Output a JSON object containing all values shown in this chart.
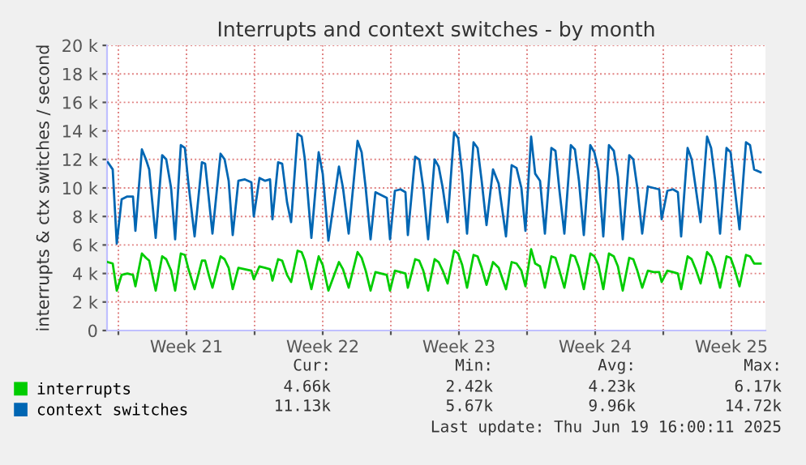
{
  "chart_data": {
    "type": "line",
    "title": "Interrupts and context switches - by month",
    "ylabel": "interrupts & ctx switches / second",
    "x": [
      "2025-05-16T11:00",
      "2025-05-16T17:00",
      "2025-05-16T22:00",
      "2025-05-17T04:00",
      "2025-05-17T11:00",
      "2025-05-17T18:00",
      "2025-05-17T21:00",
      "2025-05-18T05:00",
      "2025-05-18T10:00",
      "2025-05-18T14:00",
      "2025-05-18T22:00",
      "2025-05-19T06:00",
      "2025-05-19T11:00",
      "2025-05-19T17:00",
      "2025-05-19T22:00",
      "2025-05-20T05:00",
      "2025-05-20T10:00",
      "2025-05-20T14:00",
      "2025-05-20T22:00",
      "2025-05-21T07:00",
      "2025-05-21T11:00",
      "2025-05-21T16:00",
      "2025-05-21T20:00",
      "2025-05-22T06:00",
      "2025-05-22T11:00",
      "2025-05-22T16:00",
      "2025-05-22T21:00",
      "2025-05-23T04:00",
      "2025-05-23T12:00",
      "2025-05-23T20:00",
      "2025-05-23T23:00",
      "2025-05-24T06:00",
      "2025-05-24T13:00",
      "2025-05-24T19:00",
      "2025-05-24T22:00",
      "2025-05-25T05:00",
      "2025-05-25T10:00",
      "2025-05-25T16:00",
      "2025-05-25T21:00",
      "2025-05-26T05:00",
      "2025-05-26T10:00",
      "2025-05-26T14:00",
      "2025-05-26T22:00",
      "2025-05-27T07:00",
      "2025-05-27T12:00",
      "2025-05-27T19:00",
      "2025-05-28T08:00",
      "2025-05-28T13:00",
      "2025-05-28T20:00",
      "2025-05-29T07:00",
      "2025-05-29T12:00",
      "2025-05-29T17:00",
      "2025-05-29T23:00",
      "2025-05-30T05:00",
      "2025-05-30T12:00",
      "2025-05-30T19:00",
      "2025-05-30T23:00",
      "2025-05-31T05:00",
      "2025-05-31T12:00",
      "2025-05-31T18:00",
      "2025-05-31T21:00",
      "2025-06-01T06:00",
      "2025-06-01T11:00",
      "2025-06-01T16:00",
      "2025-06-01T22:00",
      "2025-06-02T06:00",
      "2025-06-02T11:00",
      "2025-06-02T16:00",
      "2025-06-02T22:00",
      "2025-06-03T06:00",
      "2025-06-03T11:00",
      "2025-06-03T16:00",
      "2025-06-03T22:00",
      "2025-06-04T06:00",
      "2025-06-04T11:00",
      "2025-06-04T16:00",
      "2025-06-04T22:00",
      "2025-06-05T06:00",
      "2025-06-05T13:00",
      "2025-06-05T22:00",
      "2025-06-06T05:00",
      "2025-06-06T11:00",
      "2025-06-06T17:00",
      "2025-06-06T22:00",
      "2025-06-07T05:00",
      "2025-06-07T10:00",
      "2025-06-07T16:00",
      "2025-06-07T22:00",
      "2025-06-08T06:00",
      "2025-06-08T11:00",
      "2025-06-08T16:00",
      "2025-06-08T22:00",
      "2025-06-09T06:00",
      "2025-06-09T11:00",
      "2025-06-09T16:00",
      "2025-06-09T22:00",
      "2025-06-10T06:00",
      "2025-06-10T11:00",
      "2025-06-10T16:00",
      "2025-06-10T22:00",
      "2025-06-11T05:00",
      "2025-06-11T11:00",
      "2025-06-11T16:00",
      "2025-06-11T22:00",
      "2025-06-12T06:00",
      "2025-06-12T11:00",
      "2025-06-12T16:00",
      "2025-06-12T22:00",
      "2025-06-13T05:00",
      "2025-06-13T12:00",
      "2025-06-13T19:00",
      "2025-06-13T22:00",
      "2025-06-14T05:00",
      "2025-06-14T12:00",
      "2025-06-14T18:00",
      "2025-06-14T22:00",
      "2025-06-15T06:00",
      "2025-06-15T11:00",
      "2025-06-15T16:00",
      "2025-06-15T22:00",
      "2025-06-16T06:00",
      "2025-06-16T11:00",
      "2025-06-16T16:00",
      "2025-06-16T22:00",
      "2025-06-17T06:00",
      "2025-06-17T11:00",
      "2025-06-17T16:00",
      "2025-06-17T22:00",
      "2025-06-18T06:00",
      "2025-06-18T11:00",
      "2025-06-18T16:00",
      "2025-06-19T00:00"
    ],
    "series": [
      {
        "name": "interrupts",
        "color": "#00cc00",
        "values": [
          4800,
          4700,
          2800,
          3900,
          4000,
          3900,
          3100,
          5400,
          5100,
          4900,
          2800,
          5200,
          5000,
          4200,
          2800,
          5400,
          5300,
          4400,
          2900,
          4900,
          4900,
          3800,
          3000,
          5200,
          5000,
          4400,
          2900,
          4400,
          4300,
          4200,
          3600,
          4500,
          4400,
          4300,
          3500,
          5000,
          4900,
          3900,
          3400,
          5600,
          5500,
          4900,
          2900,
          5200,
          4600,
          2800,
          4800,
          4300,
          3000,
          5500,
          5100,
          4200,
          2800,
          4100,
          4000,
          3900,
          2800,
          4200,
          4100,
          4000,
          3000,
          5000,
          4900,
          4200,
          2800,
          5000,
          4800,
          4200,
          3300,
          5600,
          5400,
          4600,
          3000,
          5300,
          5200,
          4400,
          3200,
          4800,
          4400,
          2900,
          4800,
          4700,
          4200,
          3100,
          5700,
          4700,
          4500,
          3000,
          5200,
          5100,
          4200,
          3000,
          5300,
          5200,
          4400,
          2900,
          5400,
          5200,
          4600,
          2900,
          5400,
          5200,
          4500,
          2800,
          5100,
          5000,
          4200,
          3000,
          4200,
          4100,
          4100,
          3400,
          4200,
          4100,
          4000,
          2900,
          5200,
          5000,
          4300,
          3300,
          5500,
          5200,
          4400,
          3000,
          5200,
          5100,
          4300,
          3100,
          5300,
          5200,
          4700,
          4700
        ]
      },
      {
        "name": "context switches",
        "color": "#0066b3",
        "values": [
          11800,
          11300,
          6100,
          9200,
          9400,
          9400,
          7000,
          12700,
          12000,
          11300,
          6500,
          12300,
          12000,
          10000,
          6400,
          13000,
          12800,
          10500,
          6600,
          11800,
          11700,
          9000,
          6800,
          12400,
          12000,
          10500,
          6700,
          10500,
          10600,
          10400,
          8000,
          10700,
          10500,
          10600,
          7800,
          11800,
          11700,
          9000,
          7600,
          13800,
          13600,
          12000,
          6500,
          12500,
          11000,
          6300,
          11500,
          10000,
          6800,
          13300,
          12500,
          10000,
          6400,
          9700,
          9500,
          9300,
          6400,
          9800,
          9900,
          9700,
          6700,
          12200,
          12000,
          10000,
          6400,
          12000,
          11500,
          10000,
          7600,
          13900,
          13500,
          11000,
          6800,
          13200,
          12800,
          10500,
          7400,
          11300,
          10300,
          6600,
          11600,
          11400,
          10000,
          7000,
          13600,
          11000,
          10500,
          6800,
          12800,
          12600,
          9800,
          6800,
          13000,
          12700,
          10500,
          6700,
          13000,
          12500,
          11200,
          6600,
          13000,
          12600,
          10800,
          6400,
          12300,
          12000,
          10000,
          6800,
          10100,
          10000,
          9900,
          7800,
          9800,
          9900,
          9700,
          6600,
          12800,
          12000,
          10000,
          7600,
          13600,
          12800,
          10500,
          6800,
          12800,
          12500,
          10000,
          7100,
          13200,
          13000,
          11300,
          11100
        ]
      }
    ],
    "xlim": [
      "2025-05-16T10:00",
      "2025-06-19T06:00"
    ],
    "xticks": [
      {
        "value": "2025-05-17",
        "label": null
      },
      {
        "value": "2025-05-20T12:00",
        "label": "Week 21"
      },
      {
        "value": "2025-05-24",
        "label": null
      },
      {
        "value": "2025-05-27T12:00",
        "label": "Week 22"
      },
      {
        "value": "2025-05-31",
        "label": null
      },
      {
        "value": "2025-06-03T12:00",
        "label": "Week 23"
      },
      {
        "value": "2025-06-07",
        "label": null
      },
      {
        "value": "2025-06-10T12:00",
        "label": "Week 24"
      },
      {
        "value": "2025-06-14",
        "label": null
      },
      {
        "value": "2025-06-17T12:00",
        "label": "Week 25"
      }
    ],
    "ylim": [
      0,
      20000
    ],
    "yticks": [
      0,
      {
        "value": 2000,
        "label": "2 k"
      },
      {
        "value": 4000,
        "label": "4 k"
      },
      {
        "value": 6000,
        "label": "6 k"
      },
      {
        "value": 8000,
        "label": "8 k"
      },
      {
        "value": 10000,
        "label": "10 k"
      },
      {
        "value": 12000,
        "label": "12 k"
      },
      {
        "value": 14000,
        "label": "14 k"
      },
      {
        "value": 16000,
        "label": "16 k"
      },
      {
        "value": 18000,
        "label": "18 k"
      },
      {
        "value": 20000,
        "label": "20 k"
      }
    ],
    "grid": true,
    "legend": "bottom left",
    "annotations": [
      "Cur:",
      "Min:",
      "Avg:",
      "Max:",
      "4.66k",
      "2.42k",
      "4.23k",
      "6.17k",
      "11.13k",
      "5.67k",
      "9.96k",
      "14.72k",
      "Last update: Thu Jun 19 16:00:11 2025"
    ]
  }
}
